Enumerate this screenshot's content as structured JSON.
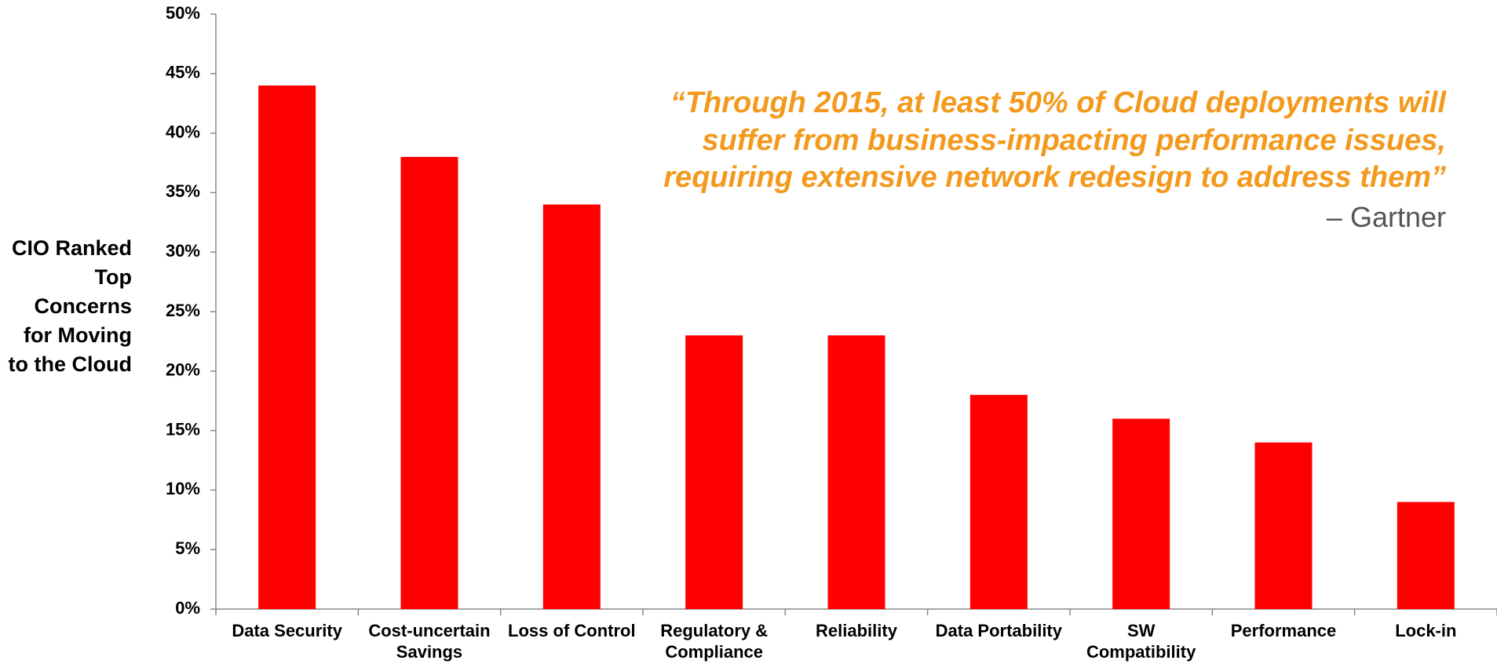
{
  "chart_data": {
    "type": "bar",
    "ylabel": "CIO Ranked Top Concerns for Moving to the Cloud",
    "annotations": [
      "“Through 2015, at least 50% of Cloud deployments will",
      "suffer from business-impacting performance issues,",
      "requiring extensive network redesign to address them”",
      "– Gartner"
    ],
    "categories": [
      "Data Security",
      "Cost-uncertain Savings",
      "Loss of Control",
      "Regulatory & Compliance",
      "Reliability",
      "Data Portability",
      "SW Compatibility",
      "Performance",
      "Lock-in"
    ],
    "values": [
      44,
      38,
      34,
      23,
      23,
      18,
      16,
      14,
      9
    ],
    "color": "#ff0000",
    "ylim": [
      0,
      50
    ],
    "yticks": [
      {
        "value": 0,
        "label": "0%"
      },
      {
        "value": 5,
        "label": "5%"
      },
      {
        "value": 10,
        "label": "10%"
      },
      {
        "value": 15,
        "label": "15%"
      },
      {
        "value": 20,
        "label": "20%"
      },
      {
        "value": 25,
        "label": "25%"
      },
      {
        "value": 30,
        "label": "30%"
      },
      {
        "value": 35,
        "label": "35%"
      },
      {
        "value": 40,
        "label": "40%"
      },
      {
        "value": 45,
        "label": "45%"
      },
      {
        "value": 50,
        "label": "50%"
      }
    ],
    "grid": false
  }
}
